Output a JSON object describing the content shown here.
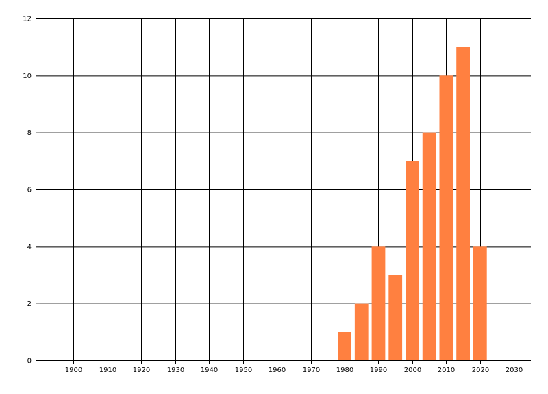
{
  "chart_data": {
    "type": "bar",
    "x": [
      1980,
      1985,
      1990,
      1995,
      2000,
      2005,
      2010,
      2015,
      2020
    ],
    "values": [
      1,
      2,
      4,
      3,
      7,
      8,
      10,
      11,
      4
    ],
    "color": "#ff8040",
    "xlim": [
      1890,
      2035
    ],
    "xticks": [
      1900,
      1910,
      1920,
      1930,
      1940,
      1950,
      1960,
      1970,
      1980,
      1990,
      2000,
      2010,
      2020,
      2030
    ],
    "ylim": [
      0,
      12
    ],
    "yticks": [
      0,
      2,
      4,
      6,
      8,
      10,
      12
    ],
    "grid": true
  }
}
